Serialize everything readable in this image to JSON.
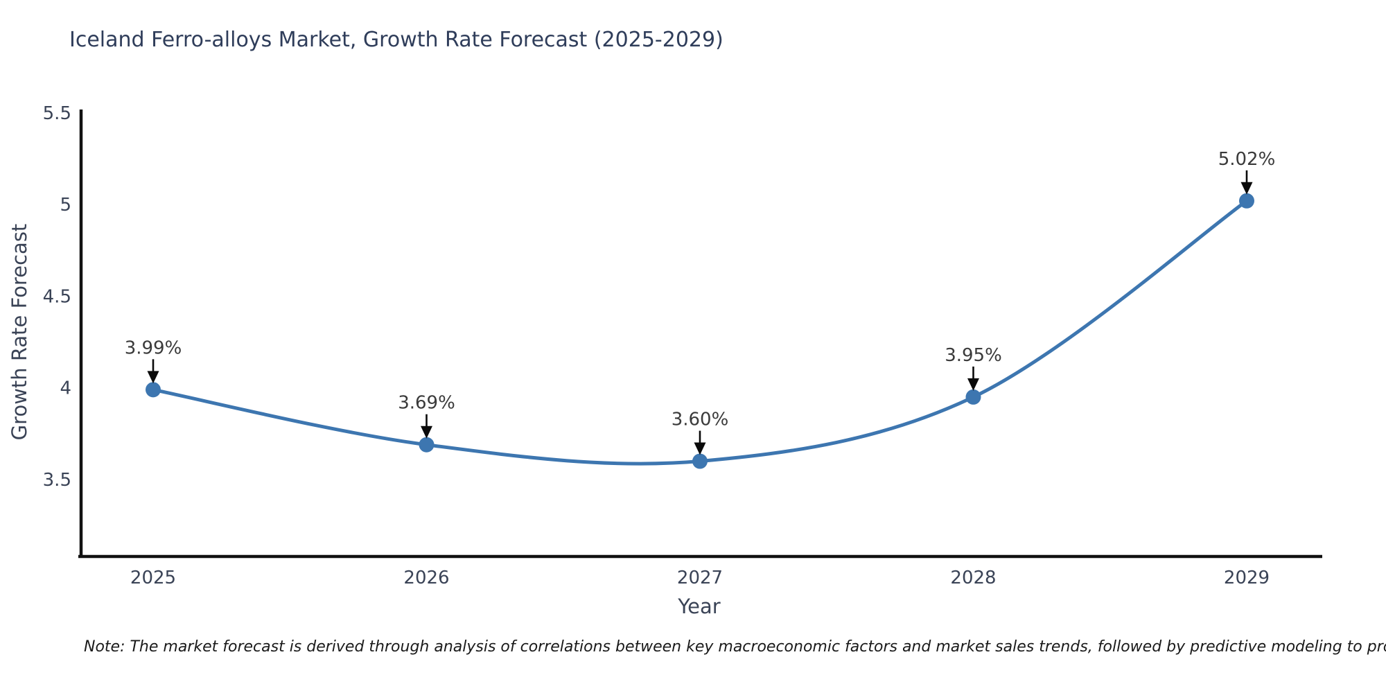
{
  "chart": {
    "title": "Iceland Ferro-alloys Market, Growth Rate Forecast (2025-2029)",
    "xlabel": "Year",
    "ylabel": "Growth Rate Forecast",
    "note": "Note: The market forecast is derived through analysis of correlations between key macroeconomic factors and market sales trends, followed by predictive modeling to project future sales"
  },
  "chart_data": {
    "type": "line",
    "title": "Iceland Ferro-alloys Market, Growth Rate Forecast (2025-2029)",
    "xlabel": "Year",
    "ylabel": "Growth Rate Forecast",
    "x": [
      2025,
      2026,
      2027,
      2028,
      2029
    ],
    "values": [
      3.99,
      3.69,
      3.6,
      3.95,
      5.02
    ],
    "point_labels": [
      "3.99%",
      "3.69%",
      "3.60%",
      "3.95%",
      "5.02%"
    ],
    "xtick_labels": [
      "2025",
      "2026",
      "2027",
      "2028",
      "2029"
    ],
    "yticks": [
      3.5,
      4,
      4.5,
      5,
      5.5
    ],
    "ytick_labels": [
      "3.5",
      "4",
      "4.5",
      "5",
      "5.5"
    ],
    "ylim": [
      3.08,
      5.51
    ],
    "grid": false,
    "legend": "none",
    "marker_size": 11,
    "colors": {
      "line": "#3d76b0",
      "marker": "#3d76b0",
      "axis": "#111111",
      "arrow": "#0a0a0a",
      "title": "#2f3d5a",
      "tick": "#3a4356",
      "annotation": "#3a3a3a",
      "note": "#1a1a1a"
    }
  }
}
